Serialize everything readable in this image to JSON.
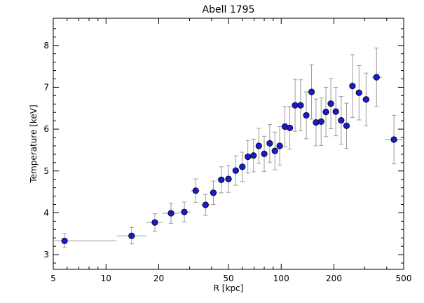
{
  "chart_data": {
    "type": "scatter",
    "title": "Abell 1795",
    "xlabel": "R [kpc]",
    "ylabel": "Temperature [keV]",
    "xscale": "log",
    "xlim": [
      5,
      500
    ],
    "ylim": [
      2.65,
      8.65
    ],
    "x_ticks_major": [
      5,
      10,
      20,
      50,
      100,
      200,
      500
    ],
    "y_ticks_major": [
      3,
      4,
      5,
      6,
      7,
      8
    ],
    "grid": false,
    "marker_color": "#1a1ad0",
    "errorbar_color": "#9a9a9a",
    "points": [
      {
        "x": 5.8,
        "y": 3.33,
        "xlo": 5.0,
        "xhi": 11.5,
        "ylo": 3.17,
        "yhi": 3.5
      },
      {
        "x": 14.0,
        "y": 3.45,
        "xlo": 11.5,
        "xhi": 17.0,
        "ylo": 3.26,
        "yhi": 3.65
      },
      {
        "x": 19.0,
        "y": 3.77,
        "xlo": 17.0,
        "xhi": 21.0,
        "ylo": 3.56,
        "yhi": 3.98
      },
      {
        "x": 23.5,
        "y": 3.99,
        "xlo": 21.0,
        "xhi": 26.0,
        "ylo": 3.75,
        "yhi": 4.23
      },
      {
        "x": 28.0,
        "y": 4.02,
        "xlo": 26.0,
        "xhi": 30.5,
        "ylo": 3.78,
        "yhi": 4.26
      },
      {
        "x": 32.5,
        "y": 4.53,
        "xlo": 30.5,
        "xhi": 34.5,
        "ylo": 4.25,
        "yhi": 4.81
      },
      {
        "x": 37.0,
        "y": 4.19,
        "xlo": 35.0,
        "xhi": 39.0,
        "ylo": 3.94,
        "yhi": 4.44
      },
      {
        "x": 41.0,
        "y": 4.48,
        "xlo": 39.0,
        "xhi": 43.0,
        "ylo": 4.2,
        "yhi": 4.76
      },
      {
        "x": 45.5,
        "y": 4.79,
        "xlo": 43.0,
        "xhi": 48.0,
        "ylo": 4.48,
        "yhi": 5.1
      },
      {
        "x": 50.0,
        "y": 4.81,
        "xlo": 48.0,
        "xhi": 52.5,
        "ylo": 4.49,
        "yhi": 5.13
      },
      {
        "x": 55.0,
        "y": 5.01,
        "xlo": 52.5,
        "xhi": 57.5,
        "ylo": 4.66,
        "yhi": 5.36
      },
      {
        "x": 60.0,
        "y": 5.1,
        "xlo": 57.5,
        "xhi": 62.5,
        "ylo": 4.75,
        "yhi": 5.45
      },
      {
        "x": 64.5,
        "y": 5.34,
        "xlo": 62.5,
        "xhi": 67.0,
        "ylo": 4.95,
        "yhi": 5.73
      },
      {
        "x": 69.5,
        "y": 5.37,
        "xlo": 67.0,
        "xhi": 72.0,
        "ylo": 4.98,
        "yhi": 5.76
      },
      {
        "x": 74.5,
        "y": 5.6,
        "xlo": 72.0,
        "xhi": 77.0,
        "ylo": 5.18,
        "yhi": 6.02
      },
      {
        "x": 80.0,
        "y": 5.41,
        "xlo": 77.0,
        "xhi": 83.0,
        "ylo": 4.99,
        "yhi": 5.83
      },
      {
        "x": 86.0,
        "y": 5.66,
        "xlo": 83.0,
        "xhi": 89.0,
        "ylo": 5.21,
        "yhi": 6.11
      },
      {
        "x": 92.0,
        "y": 5.48,
        "xlo": 89.0,
        "xhi": 95.0,
        "ylo": 5.03,
        "yhi": 5.93
      },
      {
        "x": 98.0,
        "y": 5.6,
        "xlo": 95.0,
        "xhi": 101.5,
        "ylo": 5.14,
        "yhi": 6.06
      },
      {
        "x": 105.0,
        "y": 6.06,
        "xlo": 101.5,
        "xhi": 108.5,
        "ylo": 5.58,
        "yhi": 6.54
      },
      {
        "x": 112.0,
        "y": 6.03,
        "xlo": 108.5,
        "xhi": 116.0,
        "ylo": 5.52,
        "yhi": 6.54
      },
      {
        "x": 120.0,
        "y": 6.57,
        "xlo": 116.0,
        "xhi": 124.0,
        "ylo": 5.95,
        "yhi": 7.19
      },
      {
        "x": 129.0,
        "y": 6.57,
        "xlo": 124.0,
        "xhi": 134.0,
        "ylo": 5.96,
        "yhi": 7.18
      },
      {
        "x": 139.0,
        "y": 6.33,
        "xlo": 134.0,
        "xhi": 144.0,
        "ylo": 5.77,
        "yhi": 6.89
      },
      {
        "x": 149.0,
        "y": 6.89,
        "xlo": 144.0,
        "xhi": 154.0,
        "ylo": 6.24,
        "yhi": 7.54
      },
      {
        "x": 158.0,
        "y": 6.16,
        "xlo": 154.0,
        "xhi": 163.0,
        "ylo": 5.6,
        "yhi": 6.72
      },
      {
        "x": 169.0,
        "y": 6.18,
        "xlo": 163.0,
        "xhi": 175.0,
        "ylo": 5.61,
        "yhi": 6.75
      },
      {
        "x": 180.0,
        "y": 6.41,
        "xlo": 175.0,
        "xhi": 186.0,
        "ylo": 5.82,
        "yhi": 7.0
      },
      {
        "x": 192.0,
        "y": 6.61,
        "xlo": 186.0,
        "xhi": 198.0,
        "ylo": 6.01,
        "yhi": 7.21
      },
      {
        "x": 205.0,
        "y": 6.42,
        "xlo": 198.0,
        "xhi": 212.0,
        "ylo": 5.84,
        "yhi": 7.0
      },
      {
        "x": 220.0,
        "y": 6.21,
        "xlo": 212.0,
        "xhi": 228.0,
        "ylo": 5.64,
        "yhi": 6.78
      },
      {
        "x": 236.0,
        "y": 6.08,
        "xlo": 228.0,
        "xhi": 245.0,
        "ylo": 5.54,
        "yhi": 6.62
      },
      {
        "x": 255.0,
        "y": 7.03,
        "xlo": 245.0,
        "xhi": 266.0,
        "ylo": 6.28,
        "yhi": 7.78
      },
      {
        "x": 278.0,
        "y": 6.87,
        "xlo": 266.0,
        "xhi": 290.0,
        "ylo": 6.22,
        "yhi": 7.52
      },
      {
        "x": 305.0,
        "y": 6.71,
        "xlo": 290.0,
        "xhi": 320.0,
        "ylo": 6.08,
        "yhi": 7.34
      },
      {
        "x": 350.0,
        "y": 7.24,
        "xlo": 330.0,
        "xhi": 375.0,
        "ylo": 6.54,
        "yhi": 7.94
      },
      {
        "x": 440.0,
        "y": 5.75,
        "xlo": 390.0,
        "xhi": 500.0,
        "ylo": 5.17,
        "yhi": 6.33
      }
    ]
  }
}
